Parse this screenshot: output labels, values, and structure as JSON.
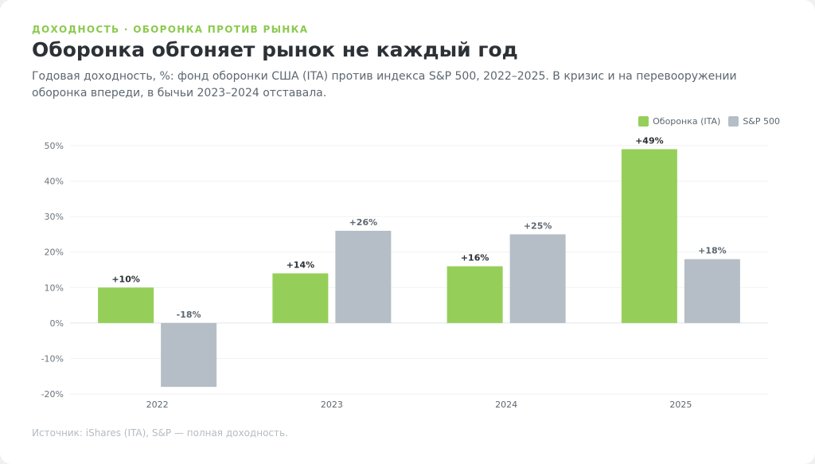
{
  "header": {
    "eyebrow": "ДОХОДНОСТЬ · ОБОРОНКА ПРОТИВ РЫНКА",
    "title": "Оборонка обгоняет рынок не каждый год",
    "subtitle": "Годовая доходность, %: фонд оборонки США (ITA) против индекса S&P 500, 2022–2025. В кризис и на перевооружении оборонка впереди, в бычьи 2023–2024 отставала."
  },
  "footer": {
    "source": "Источник: iShares (ITA), S&P — полная доходность."
  },
  "chart_data": {
    "type": "bar",
    "categories": [
      "2022",
      "2023",
      "2024",
      "2025"
    ],
    "series": [
      {
        "name": "Оборонка (ITA)",
        "values": [
          10,
          14,
          16,
          49
        ],
        "labels": [
          "+10%",
          "+14%",
          "+16%",
          "+49%"
        ],
        "color": "#95cf5a"
      },
      {
        "name": "S&P 500",
        "values": [
          -18,
          26,
          25,
          18
        ],
        "labels": [
          "-18%",
          "+26%",
          "+25%",
          "+18%"
        ],
        "color": "#b5bec6"
      }
    ],
    "ylim": [
      -20,
      50
    ],
    "yticks": [
      -20,
      -10,
      0,
      10,
      20,
      30,
      40,
      50
    ],
    "ytick_labels": [
      "-20%",
      "-10%",
      "0%",
      "10%",
      "20%",
      "30%",
      "40%",
      "50%"
    ],
    "grid": true,
    "legend_position": "top-right"
  }
}
